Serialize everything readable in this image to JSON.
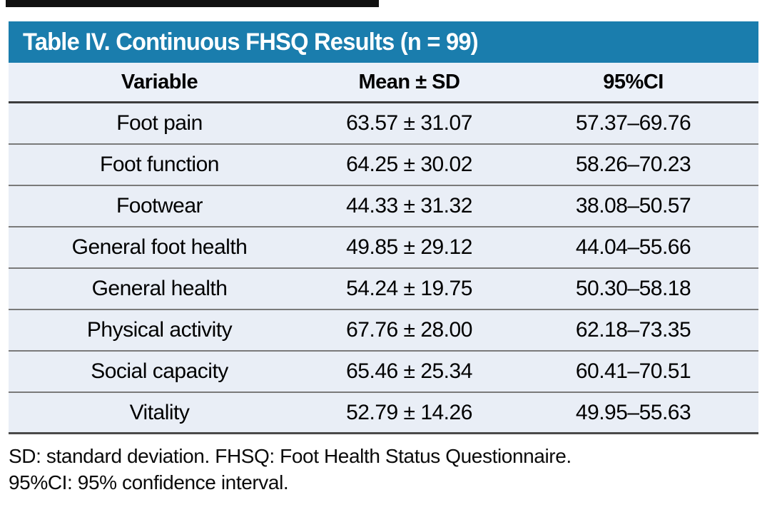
{
  "title": "Table IV. Continuous FHSQ Results (n = 99)",
  "columns": {
    "variable": "Variable",
    "mean_sd": "Mean ± SD",
    "ci": "95%CI"
  },
  "rows": [
    {
      "variable": "Foot pain",
      "mean_sd": "63.57 ± 31.07",
      "ci": "57.37–69.76"
    },
    {
      "variable": "Foot function",
      "mean_sd": "64.25 ± 30.02",
      "ci": "58.26–70.23"
    },
    {
      "variable": "Footwear",
      "mean_sd": "44.33 ± 31.32",
      "ci": "38.08–50.57"
    },
    {
      "variable": "General foot health",
      "mean_sd": "49.85 ± 29.12",
      "ci": "44.04–55.66"
    },
    {
      "variable": "General health",
      "mean_sd": "54.24 ± 19.75",
      "ci": "50.30–58.18"
    },
    {
      "variable": "Physical activity",
      "mean_sd": "67.76 ± 28.00",
      "ci": "62.18–73.35"
    },
    {
      "variable": "Social capacity",
      "mean_sd": "65.46 ± 25.34",
      "ci": "60.41–70.51"
    },
    {
      "variable": "Vitality",
      "mean_sd": "52.79 ± 14.26",
      "ci": "49.95–55.63"
    }
  ],
  "footnotes": [
    "SD: standard deviation. FHSQ: Foot Health Status Questionnaire.",
    "95%CI: 95% confidence interval."
  ],
  "colors": {
    "title_bar": "#1A7DAD",
    "header_row_bg": "#EBF0F8",
    "data_row_bg": "#E9EEF6",
    "rule_dark": "#3c3c3c",
    "rule_light": "#7a7a7a",
    "title_text": "#ffffff",
    "body_text": "#000000"
  },
  "chart_data": {
    "type": "table",
    "title": "Table IV. Continuous FHSQ Results (n = 99)",
    "n": 99,
    "columns": [
      "Variable",
      "Mean ± SD",
      "95%CI"
    ],
    "records": [
      {
        "variable": "Foot pain",
        "mean": 63.57,
        "sd": 31.07,
        "ci_low": 57.37,
        "ci_high": 69.76
      },
      {
        "variable": "Foot function",
        "mean": 64.25,
        "sd": 30.02,
        "ci_low": 58.26,
        "ci_high": 70.23
      },
      {
        "variable": "Footwear",
        "mean": 44.33,
        "sd": 31.32,
        "ci_low": 38.08,
        "ci_high": 50.57
      },
      {
        "variable": "General foot health",
        "mean": 49.85,
        "sd": 29.12,
        "ci_low": 44.04,
        "ci_high": 55.66
      },
      {
        "variable": "General health",
        "mean": 54.24,
        "sd": 19.75,
        "ci_low": 50.3,
        "ci_high": 58.18
      },
      {
        "variable": "Physical activity",
        "mean": 67.76,
        "sd": 28.0,
        "ci_low": 62.18,
        "ci_high": 73.35
      },
      {
        "variable": "Social capacity",
        "mean": 65.46,
        "sd": 25.34,
        "ci_low": 60.41,
        "ci_high": 70.51
      },
      {
        "variable": "Vitality",
        "mean": 52.79,
        "sd": 14.26,
        "ci_low": 49.95,
        "ci_high": 55.63
      }
    ]
  }
}
